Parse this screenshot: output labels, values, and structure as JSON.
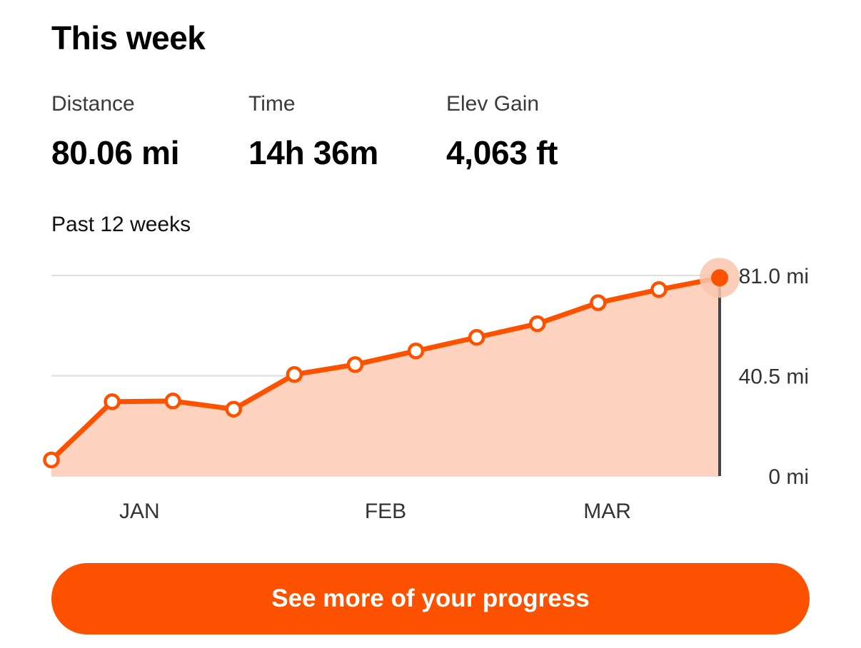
{
  "header": {
    "title": "This week"
  },
  "stats": [
    {
      "label": "Distance",
      "value": "80.06 mi"
    },
    {
      "label": "Time",
      "value": "14h 36m"
    },
    {
      "label": "Elev Gain",
      "value": "4,063 ft"
    }
  ],
  "period_label": "Past 12 weeks",
  "colors": {
    "accent": "#fc5200",
    "area_fill": "#fdd3bf",
    "selected_halo": "#f9c6ad"
  },
  "chart_data": {
    "type": "line",
    "ylim": [
      0,
      81.0
    ],
    "y_ticks": [
      {
        "value": 0,
        "label": "0 mi"
      },
      {
        "value": 40.5,
        "label": "40.5 mi"
      },
      {
        "value": 81.0,
        "label": "81.0 mi"
      }
    ],
    "x_labels": [
      "JAN",
      "FEB",
      "MAR"
    ],
    "series": [
      {
        "values": [
          6.5,
          30.0,
          30.3,
          27.0,
          41.0,
          45.0,
          50.5,
          56.0,
          61.5,
          70.0,
          75.3,
          80.06
        ]
      }
    ],
    "selected_index": 11,
    "area_fill": true,
    "grid": true
  },
  "cta": {
    "label": "See more of your progress"
  }
}
